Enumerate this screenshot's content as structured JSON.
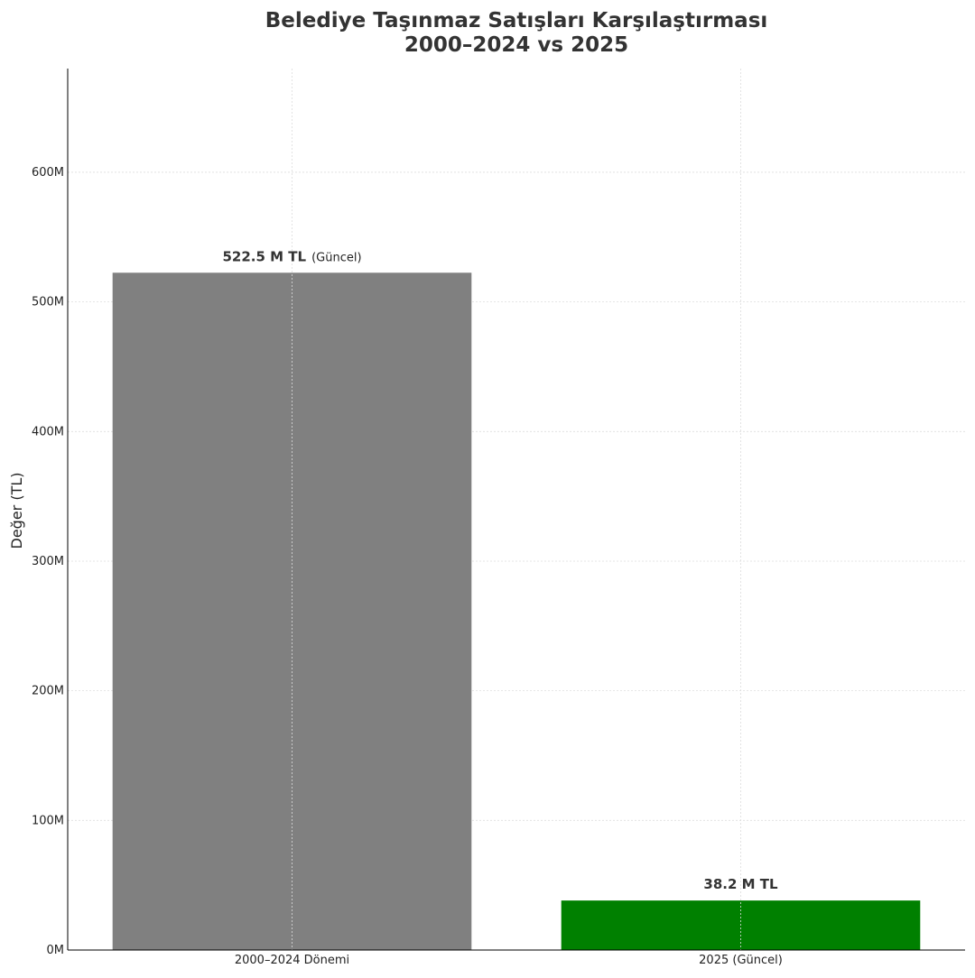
{
  "chart_data": {
    "type": "bar",
    "title_line1": "Belediye Taşınmaz Satışları Karşılaştırması",
    "title_line2": "2000–2024 vs 2025",
    "xlabel": "",
    "ylabel": "Değer (TL)",
    "categories": [
      "2000–2024 Dönemi",
      "2025 (Güncel)"
    ],
    "values": [
      522500000,
      38200000
    ],
    "bar_colors": [
      "#808080",
      "#008000"
    ],
    "value_labels": [
      "522.5 M TL",
      "38.2 M TL"
    ],
    "value_label_suffixes": [
      "(Güncel)",
      ""
    ],
    "ylim": [
      0,
      680000000
    ],
    "yticks": [
      0,
      100000000,
      200000000,
      300000000,
      400000000,
      500000000,
      600000000
    ],
    "ytick_labels": [
      "0M",
      "100M",
      "200M",
      "300M",
      "400M",
      "500M",
      "600M"
    ],
    "grid": true,
    "legend": "none"
  },
  "colors": {
    "title": "#333333",
    "axis": "#000000",
    "grid": "#dddddd",
    "text": "#222222"
  }
}
